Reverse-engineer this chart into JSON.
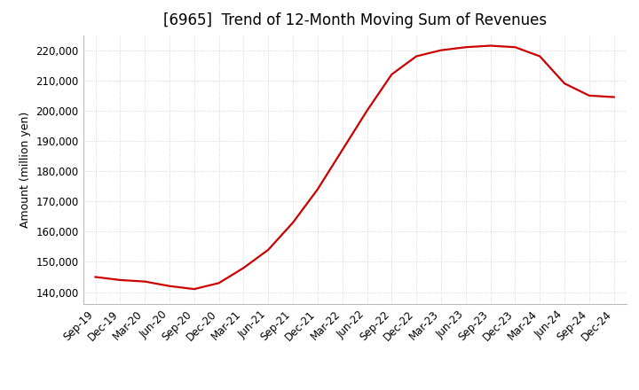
{
  "title": "[6965]  Trend of 12-Month Moving Sum of Revenues",
  "ylabel": "Amount (million yen)",
  "line_color": "#cc0000",
  "background_color": "#ffffff",
  "grid_color": "#cccccc",
  "x_labels": [
    "Sep-19",
    "Dec-19",
    "Mar-20",
    "Jun-20",
    "Sep-20",
    "Dec-20",
    "Mar-21",
    "Jun-21",
    "Sep-21",
    "Dec-21",
    "Mar-22",
    "Jun-22",
    "Sep-22",
    "Dec-22",
    "Mar-23",
    "Jun-23",
    "Sep-23",
    "Dec-23",
    "Mar-24",
    "Jun-24",
    "Sep-24",
    "Dec-24"
  ],
  "y_values": [
    145000,
    144000,
    143500,
    142000,
    141000,
    143000,
    148000,
    154000,
    163000,
    174000,
    187000,
    200000,
    212000,
    218000,
    220000,
    221000,
    221500,
    221000,
    218000,
    209000,
    205000,
    204500
  ],
  "ylim": [
    136000,
    225000
  ],
  "yticks": [
    140000,
    150000,
    160000,
    170000,
    180000,
    190000,
    200000,
    210000,
    220000
  ],
  "title_fontsize": 12,
  "label_fontsize": 9,
  "tick_fontsize": 8.5
}
